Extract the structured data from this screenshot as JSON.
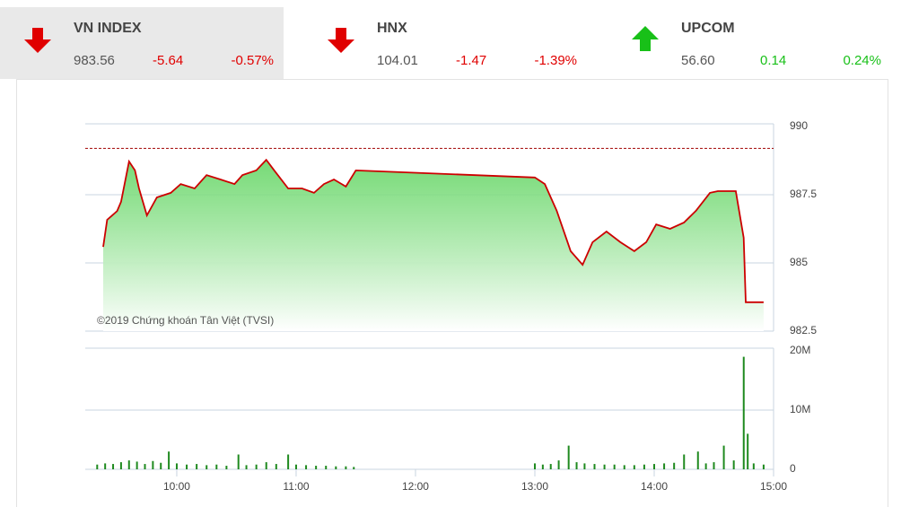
{
  "header": {
    "indices": [
      {
        "name": "VN INDEX",
        "value": "983.56",
        "change": "-5.64",
        "percent": "-0.57%",
        "direction": "down"
      },
      {
        "name": "HNX",
        "value": "104.01",
        "change": "-1.47",
        "percent": "-1.39%",
        "direction": "down"
      },
      {
        "name": "UPCOM",
        "value": "56.60",
        "change": "0.14",
        "percent": "0.24%",
        "direction": "up"
      }
    ]
  },
  "chart_data": [
    {
      "type": "area",
      "annotation": "©2019 Chứng khoán Tân Việt (TVSI)",
      "color": "#cc0000",
      "fill_color": "#5fd45f",
      "reference_line": 989.2,
      "reference_color": "#a00000",
      "x": [
        "09:23",
        "09:25",
        "09:30",
        "09:32",
        "09:36",
        "09:39",
        "09:41",
        "09:45",
        "09:50",
        "09:57",
        "10:02",
        "10:09",
        "10:15",
        "10:22",
        "10:29",
        "10:33",
        "10:40",
        "10:45",
        "10:49",
        "10:56",
        "11:03",
        "11:09",
        "11:14",
        "11:19",
        "11:25",
        "11:30",
        "13:00",
        "13:05",
        "13:11",
        "13:18",
        "13:24",
        "13:29",
        "13:36",
        "13:43",
        "13:50",
        "13:56",
        "14:01",
        "14:08",
        "14:15",
        "14:21",
        "14:28",
        "14:32",
        "14:41",
        "14:45",
        "14:46",
        "14:55"
      ],
      "values": [
        985.59,
        986.58,
        986.9,
        987.24,
        988.72,
        988.39,
        987.73,
        986.74,
        987.4,
        987.57,
        987.89,
        987.73,
        988.22,
        988.06,
        987.89,
        988.22,
        988.39,
        988.78,
        988.39,
        987.73,
        987.73,
        987.57,
        987.89,
        988.06,
        987.8,
        988.39,
        988.13,
        987.89,
        986.91,
        985.43,
        984.93,
        985.76,
        986.15,
        985.76,
        985.43,
        985.76,
        986.41,
        986.25,
        986.48,
        986.91,
        987.57,
        987.63,
        987.63,
        985.92,
        983.56,
        983.56
      ],
      "xlim": [
        "09:14",
        "15:00"
      ],
      "ylim": [
        982.5,
        990
      ],
      "yticks": [
        982.5,
        985,
        987.5,
        990
      ],
      "grid": true
    },
    {
      "type": "bar",
      "color": "#1f8a1f",
      "x": [
        "09:20",
        "09:24",
        "09:28",
        "09:32",
        "09:36",
        "09:40",
        "09:44",
        "09:48",
        "09:52",
        "09:56",
        "10:00",
        "10:05",
        "10:10",
        "10:15",
        "10:20",
        "10:25",
        "10:31",
        "10:35",
        "10:40",
        "10:45",
        "10:50",
        "10:56",
        "11:00",
        "11:05",
        "11:10",
        "11:15",
        "11:20",
        "11:25",
        "11:29",
        "13:00",
        "13:04",
        "13:08",
        "13:12",
        "13:17",
        "13:21",
        "13:25",
        "13:30",
        "13:35",
        "13:40",
        "13:45",
        "13:50",
        "13:55",
        "14:00",
        "14:05",
        "14:10",
        "14:15",
        "14:22",
        "14:26",
        "14:30",
        "14:35",
        "14:40",
        "14:45",
        "14:47",
        "14:50",
        "14:55"
      ],
      "values": [
        0.8,
        1.0,
        0.9,
        1.2,
        1.5,
        1.3,
        0.9,
        1.4,
        1.1,
        3.0,
        1.0,
        0.8,
        0.9,
        0.7,
        0.8,
        0.6,
        2.5,
        0.7,
        0.8,
        1.2,
        0.9,
        2.5,
        0.8,
        0.7,
        0.6,
        0.6,
        0.5,
        0.5,
        0.4,
        1.0,
        0.8,
        0.9,
        1.5,
        4.0,
        1.2,
        1.0,
        0.9,
        0.8,
        0.8,
        0.7,
        0.7,
        0.8,
        0.9,
        1.0,
        1.1,
        2.5,
        3.0,
        1.0,
        1.2,
        4.0,
        1.5,
        19.0,
        6.0,
        1.0,
        0.8
      ],
      "xlim": [
        "09:14",
        "15:00"
      ],
      "ylim": [
        0,
        20
      ],
      "yticks": [
        0,
        {
          "value": 10,
          "label": "10M"
        },
        {
          "value": 20,
          "label": "20M"
        }
      ],
      "xticks": [
        "10:00",
        "11:00",
        "12:00",
        "13:00",
        "14:00",
        "15:00"
      ],
      "grid": true
    }
  ]
}
